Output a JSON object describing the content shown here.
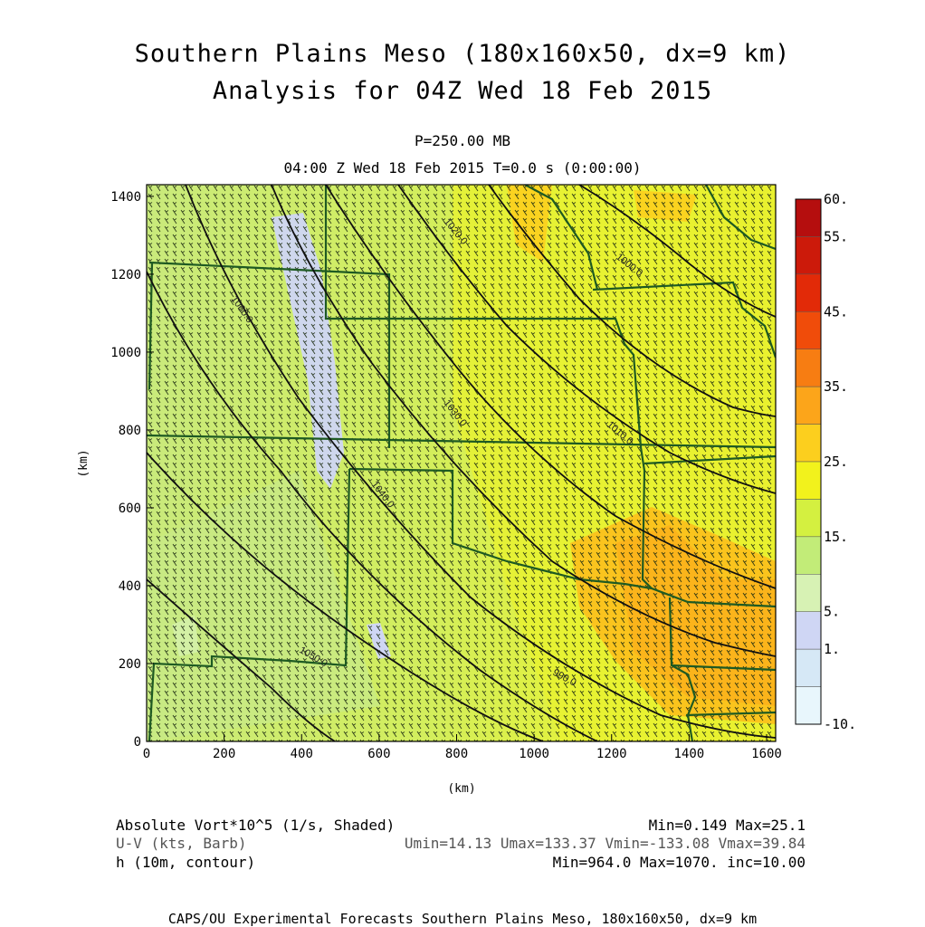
{
  "title": {
    "line1": "Southern Plains Meso (180x160x50, dx=9 km)",
    "line2": "Analysis for 04Z Wed 18 Feb 2015"
  },
  "subtitle": {
    "level": "P=250.00 MB",
    "time": "04:00 Z Wed 18 Feb 2015    T=0.0 s (0:00:00)"
  },
  "axes": {
    "x_label": "(km)",
    "y_label": "(km)",
    "x_ticks": [
      "0",
      "200",
      "400",
      "600",
      "800",
      "1000",
      "1200",
      "1400",
      "1600"
    ],
    "y_ticks": [
      "0",
      "200",
      "400",
      "600",
      "800",
      "1000",
      "1200",
      "1400"
    ]
  },
  "colorbar": {
    "labels": [
      "60.",
      "55.",
      "45.",
      "35.",
      "25.",
      "15.",
      "5.",
      "1.",
      "-10."
    ],
    "colors": [
      "#b50e0e",
      "#cc1a0a",
      "#e22a08",
      "#f04c0a",
      "#f77d12",
      "#fca51a",
      "#fccf1e",
      "#f2f21c",
      "#d4f040",
      "#c2ec78",
      "#d7f2b4",
      "#cfd6f4",
      "#d6e8f6",
      "#e8f6fc"
    ]
  },
  "contour_labels": [
    "1060.0",
    "1050.0",
    "1040.0",
    "1030.0",
    "1020.0",
    "1010.0",
    "1000.0",
    "990.0"
  ],
  "legend": {
    "field1_name": "Absolute Vort*10^5 (1/s, Shaded)",
    "field1_stats": "Min=0.149 Max=25.1",
    "field2_name": "U-V (kts, Barb)",
    "field2_stats": "Umin=14.13 Umax=133.37 Vmin=-133.08 Vmax=39.84",
    "field3_name": "h (10m, contour)",
    "field3_stats": "Min=964.0 Max=1070. inc=10.00"
  },
  "footer": "CAPS/OU Experimental Forecasts  Southern Plains Meso, 180x160x50, dx=9 km"
}
